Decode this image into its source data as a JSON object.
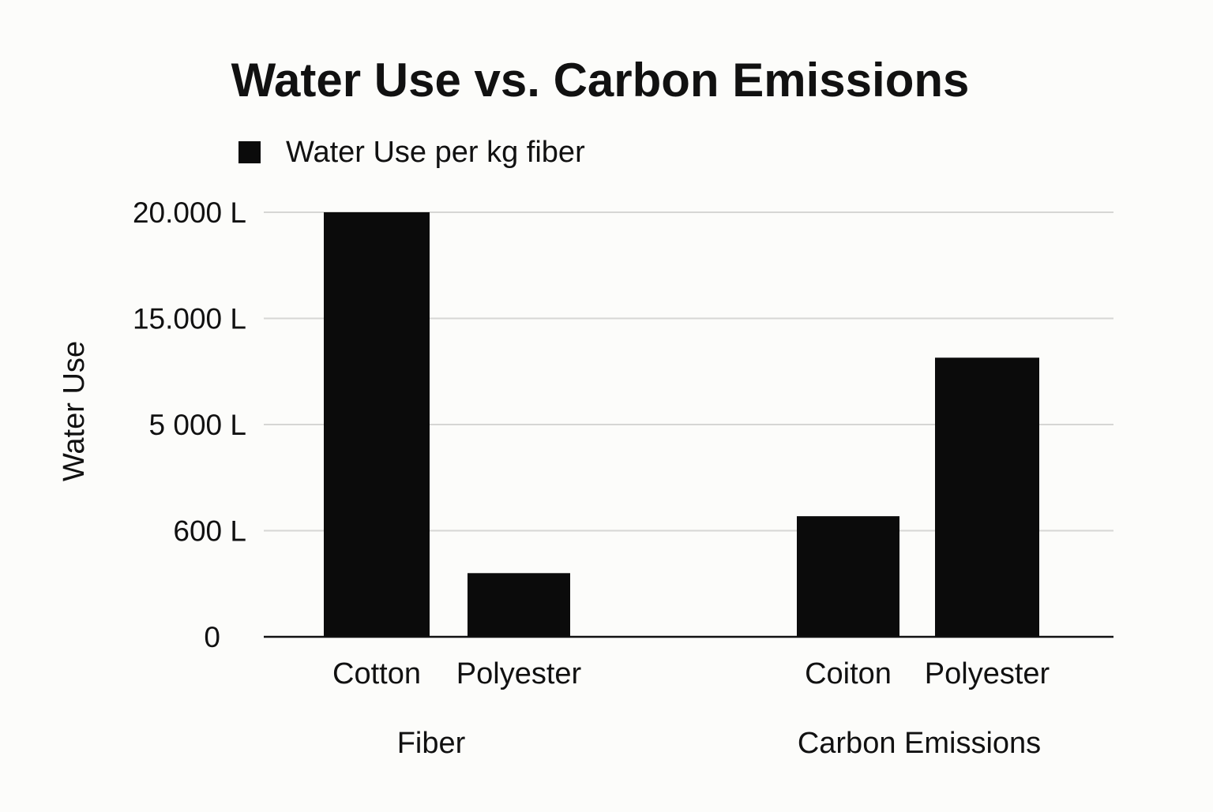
{
  "chart_data": {
    "type": "bar",
    "title": "Water Use vs. Carbon Emissions",
    "legend": {
      "position": "top-left",
      "entries": [
        {
          "label": "Water Use per kg fiber",
          "color": "#0b0b0b"
        }
      ]
    },
    "ylabel": "Water Use",
    "yticks": [
      {
        "label": "0",
        "value": 0
      },
      {
        "label": "600 L",
        "value": 600
      },
      {
        "label": "5 000 L",
        "value": 5000
      },
      {
        "label": "15.000 L",
        "value": 15000
      },
      {
        "label": "20.000 L",
        "value": 20000
      }
    ],
    "y_scale": "non-uniform (tick labels evenly spaced)",
    "grid": true,
    "groups": [
      {
        "label": "Fiber",
        "categories": [
          "Cotton",
          "Polyester"
        ],
        "values": [
          20000,
          360
        ]
      },
      {
        "label": "Carbon Emissions",
        "categories": [
          "Coiton",
          "Polyester"
        ],
        "values": [
          1200,
          11300
        ]
      }
    ],
    "bar_color": "#0b0b0b"
  }
}
